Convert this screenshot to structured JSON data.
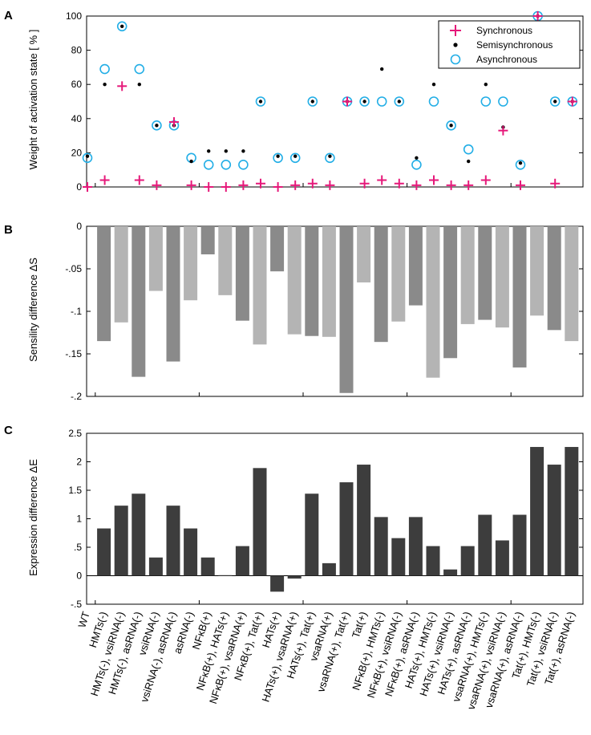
{
  "categories": [
    "WT",
    "HMTs(-)",
    "HMTs(-), vsiRNA(-)",
    "HMTs(-), asRNA(-)",
    "vsiRNA(-)",
    "vsiRNA(-), asRNA(-)",
    "asRNA(-)",
    "NFκB(+)",
    "NFκB(+), HATs(+)",
    "NFκB(+), vsaRNA(+)",
    "NFκB(+), Tat(+)",
    "HATs(+)",
    "HATs(+), vsaRNA(+)",
    "HATs(+), Tat(+)",
    "vsaRNA(+)",
    "vsaRNA(+), Tat(+)",
    "Tat(+)",
    "NFκB(+), HMTs(-)",
    "NFκB(+), vsiRNA(-)",
    "NFκB(+), asRNA(-)",
    "HATs(+), HMTs(-)",
    "HATs(+), vsiRNA(-)",
    "HATs(+), asRNA(-)",
    "vsaRNA(+), HMTs(-)",
    "vsaRNA(+), vsiRNA(-)",
    "vsaRNA(+), asRNA(-)",
    "Tat(+), HMTs(-)",
    "Tat(+), vsiRNA(-)",
    "Tat(+), asRNA(-)"
  ],
  "panels": {
    "a": {
      "label": "A",
      "ylabel": "Weight of activation state [ % ]"
    },
    "b": {
      "label": "B",
      "ylabel": "Sensility difference  ΔS"
    },
    "c": {
      "label": "C",
      "ylabel": "Expression difference  ΔE"
    }
  },
  "legend": {
    "synchronous": "Synchronous",
    "semisynchronous": "Semisynchronous",
    "asynchronous": "Asynchronous"
  },
  "colors": {
    "synchronous": "#e6197a",
    "semisynchronous": "#000000",
    "asynchronous": "#22aee6",
    "bar_dark": "#8a8a8a",
    "bar_light": "#b4b4b4",
    "bar_expr": "#3d3d3d"
  },
  "chart_data": [
    {
      "type": "scatter",
      "title": "",
      "xlabel": "",
      "ylabel": "Weight of activation state [ % ]",
      "ylim": [
        0,
        100
      ],
      "yticks": [
        0,
        20,
        40,
        60,
        80,
        100
      ],
      "series": [
        {
          "name": "Synchronous",
          "marker": "plus",
          "values": [
            0,
            4,
            59,
            4,
            1,
            38,
            1,
            0,
            0,
            1,
            2,
            0,
            1,
            2,
            1,
            50,
            2,
            4,
            2,
            1,
            4,
            1,
            1,
            4,
            33,
            1,
            100,
            2,
            50
          ]
        },
        {
          "name": "Semisynchronous",
          "marker": "dot",
          "values": [
            18,
            60,
            94,
            60,
            36,
            36,
            15,
            21,
            21,
            21,
            50,
            18,
            18,
            50,
            18,
            50,
            50,
            69,
            50,
            17,
            60,
            36,
            15,
            60,
            35,
            14,
            100,
            50,
            50
          ]
        },
        {
          "name": "Asynchronous",
          "marker": "circle",
          "values": [
            17,
            69,
            94,
            69,
            36,
            36,
            17,
            13,
            13,
            13,
            50,
            17,
            17,
            50,
            17,
            50,
            50,
            50,
            50,
            13,
            50,
            36,
            22,
            50,
            50,
            13,
            100,
            50,
            50
          ]
        }
      ]
    },
    {
      "type": "bar",
      "title": "",
      "xlabel": "",
      "ylabel": "Sensility difference  ΔS",
      "ylim": [
        -0.2,
        0
      ],
      "yticks": [
        -0.2,
        -0.15,
        -0.1,
        -0.05,
        0
      ],
      "values": [
        0,
        -0.135,
        -0.113,
        -0.177,
        -0.076,
        -0.159,
        -0.087,
        -0.033,
        -0.081,
        -0.111,
        -0.139,
        -0.053,
        -0.127,
        -0.129,
        -0.13,
        -0.196,
        -0.066,
        -0.136,
        -0.112,
        -0.093,
        -0.178,
        -0.155,
        -0.115,
        -0.11,
        -0.119,
        -0.166,
        -0.105,
        -0.122,
        -0.135
      ],
      "shades": [
        "dark",
        "dark",
        "light",
        "dark",
        "light",
        "dark",
        "light",
        "dark",
        "light",
        "dark",
        "light",
        "dark",
        "light",
        "dark",
        "light",
        "dark",
        "light",
        "dark",
        "light",
        "dark",
        "light",
        "dark",
        "light",
        "dark",
        "light",
        "dark",
        "light",
        "dark",
        "light"
      ]
    },
    {
      "type": "bar",
      "title": "",
      "xlabel": "",
      "ylabel": "Expression difference  ΔE",
      "ylim": [
        -0.5,
        2.5
      ],
      "yticks": [
        -0.5,
        0,
        0.5,
        1,
        1.5,
        2,
        2.5
      ],
      "values": [
        0,
        0.83,
        1.23,
        1.44,
        0.32,
        1.23,
        0.83,
        0.32,
        0.01,
        0.52,
        1.89,
        -0.28,
        -0.05,
        1.44,
        0.22,
        1.64,
        1.95,
        1.03,
        0.66,
        1.03,
        0.52,
        0.11,
        0.52,
        1.07,
        0.62,
        1.07,
        2.26,
        1.95,
        2.26
      ]
    }
  ]
}
